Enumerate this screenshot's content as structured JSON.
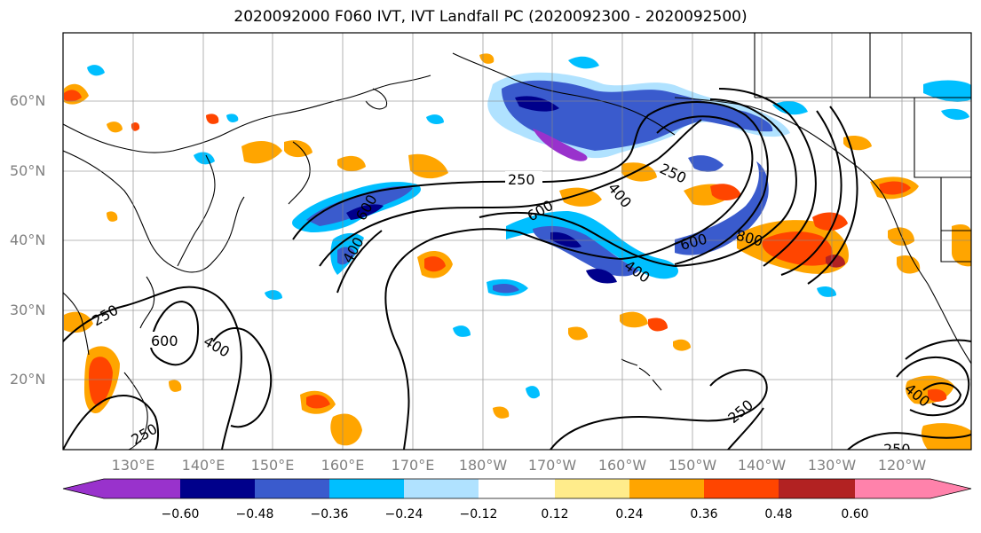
{
  "title": "2020092000 F060 IVT, IVT Landfall PC (2020092300 - 2020092500)",
  "latitude_labels": [
    "60°N",
    "50°N",
    "40°N",
    "30°N",
    "20°N"
  ],
  "longitude_labels": [
    "130°E",
    "140°E",
    "150°E",
    "160°E",
    "170°E",
    "180°W",
    "170°W",
    "160°W",
    "150°W",
    "140°W",
    "130°W",
    "120°W"
  ],
  "contour_labels": [
    "250",
    "400",
    "600",
    "800",
    "250",
    "400",
    "600",
    "250",
    "400",
    "600",
    "250",
    "250",
    "400",
    "250"
  ],
  "colorbar": {
    "colors": [
      "#9932cc",
      "#00008b",
      "#3a5bcd",
      "#00bfff",
      "#b0e2ff",
      "#ffffff",
      "#ffec8b",
      "#ffa500",
      "#ff4500",
      "#b22222",
      "#ff82ab"
    ],
    "labels": [
      "−0.60",
      "−0.48",
      "−0.36",
      "−0.24",
      "−0.12",
      "0.12",
      "0.24",
      "0.36",
      "0.48",
      "0.60"
    ]
  }
}
